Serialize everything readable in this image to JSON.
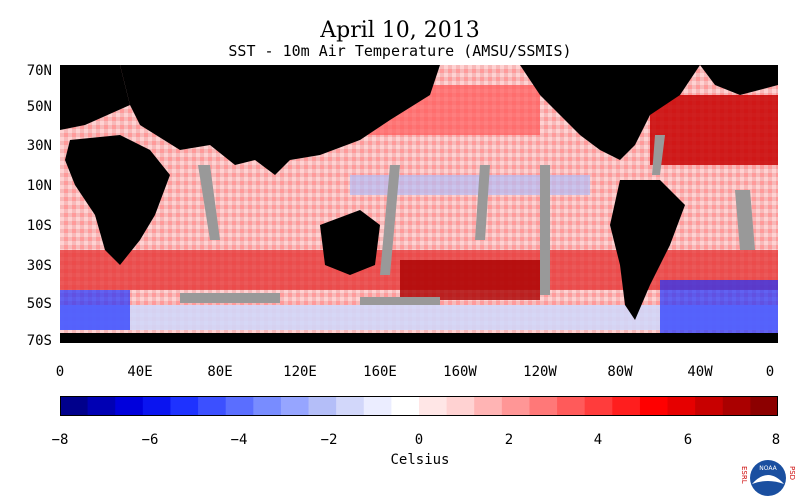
{
  "header": {
    "title": "April 10, 2013",
    "subtitle": "SST - 10m Air Temperature (AMSU/SSMIS)"
  },
  "map": {
    "lat_labels": [
      "70N",
      "50N",
      "30N",
      "10N",
      "10S",
      "30S",
      "50S",
      "70S"
    ],
    "lon_labels": [
      "0",
      "40E",
      "80E",
      "120E",
      "160E",
      "160W",
      "120W",
      "80W",
      "40W",
      "0"
    ],
    "colors": {
      "land": "#000000",
      "missing": "#999999"
    }
  },
  "colorbar": {
    "tick_labels": [
      "−8",
      "−6",
      "−4",
      "−2",
      "0",
      "2",
      "4",
      "6",
      "8"
    ],
    "unit": "Celsius",
    "colors": [
      "#00008c",
      "#0000b4",
      "#0000dc",
      "#0a14f0",
      "#1e32ff",
      "#3c50ff",
      "#5a6eff",
      "#788cff",
      "#96a5ff",
      "#b4bef8",
      "#d2d7fa",
      "#ebedff",
      "#ffffff",
      "#ffe6e6",
      "#ffd2d2",
      "#ffb4b4",
      "#ff9696",
      "#ff7878",
      "#ff5a5a",
      "#ff3c3c",
      "#ff1e1e",
      "#ff0000",
      "#e60000",
      "#c80000",
      "#aa0000",
      "#8c0000"
    ]
  },
  "logo": {
    "left_text": "ESRL",
    "right_text": "PSD",
    "center_text": "NOAA",
    "colors": {
      "ring": "#1a4fa0",
      "gull": "#ffffff"
    }
  }
}
